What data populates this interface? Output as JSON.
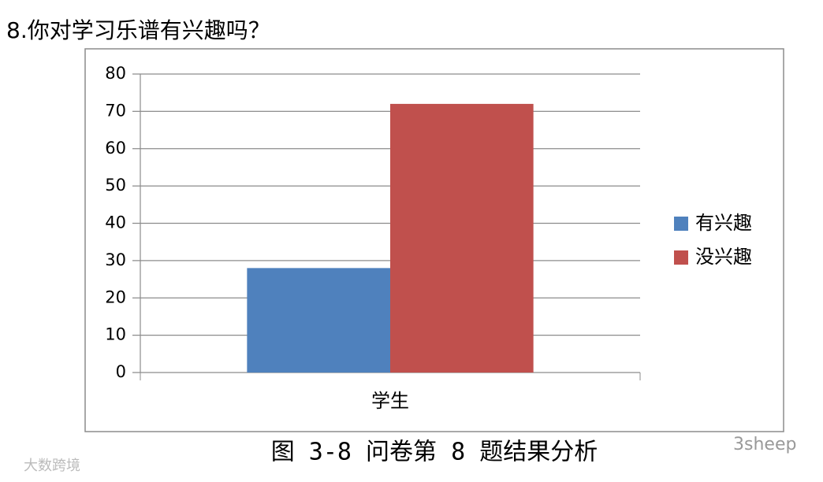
{
  "heading": "8.你对学习乐谱有兴趣吗？",
  "chart_data": {
    "type": "bar",
    "categories": [
      "学生"
    ],
    "series": [
      {
        "name": "有兴趣",
        "color": "#4f81bd",
        "values": [
          28
        ]
      },
      {
        "name": "没兴趣",
        "color": "#c0504d",
        "values": [
          72
        ]
      }
    ],
    "ylim": [
      0,
      80
    ],
    "yticks": [
      0,
      10,
      20,
      30,
      40,
      50,
      60,
      70,
      80
    ],
    "grid": true,
    "legend": "right"
  },
  "caption": "图 3-8 问卷第 8 题结果分析",
  "watermarks": [
    "大数跨境",
    "3sheep"
  ]
}
